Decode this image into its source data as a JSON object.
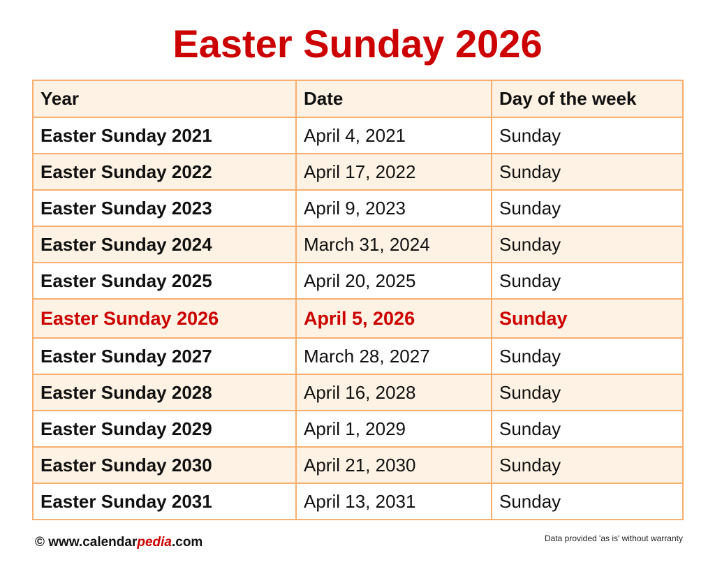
{
  "title": "Easter Sunday 2026",
  "colors": {
    "title": "#cc0000",
    "border": "#f7ae6e",
    "shade": "#fdf2e3",
    "highlight": "#cc0000"
  },
  "table": {
    "headers": [
      "Year",
      "Date",
      "Day of the week"
    ],
    "rows": [
      [
        "Easter Sunday 2021",
        "April 4, 2021",
        "Sunday"
      ],
      [
        "Easter Sunday 2022",
        "April 17, 2022",
        "Sunday"
      ],
      [
        "Easter Sunday 2023",
        "April 9, 2023",
        "Sunday"
      ],
      [
        "Easter Sunday 2024",
        "March 31, 2024",
        "Sunday"
      ],
      [
        "Easter Sunday 2025",
        "April 20, 2025",
        "Sunday"
      ],
      [
        "Easter Sunday 2026",
        "April 5, 2026",
        "Sunday"
      ],
      [
        "Easter Sunday 2027",
        "March 28, 2027",
        "Sunday"
      ],
      [
        "Easter Sunday 2028",
        "April 16, 2028",
        "Sunday"
      ],
      [
        "Easter Sunday 2029",
        "April 1, 2029",
        "Sunday"
      ],
      [
        "Easter Sunday 2030",
        "April 21, 2030",
        "Sunday"
      ],
      [
        "Easter Sunday 2031",
        "April 13, 2031",
        "Sunday"
      ]
    ],
    "highlighted_row": 5
  },
  "footer": {
    "copyright": "© www.calendar",
    "brand_italic": "pedia",
    "domain_suffix": ".com",
    "disclaimer": "Data provided 'as is' without warranty"
  }
}
